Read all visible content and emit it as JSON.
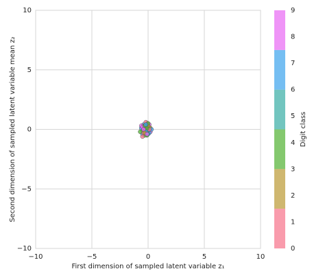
{
  "chart_data": {
    "type": "scatter",
    "xlabel": "First dimension of sampled latent variable z₁",
    "ylabel": "Second dimension of sampled latent variable mean z₂",
    "x": [
      -0.3,
      -0.1,
      0.1,
      -0.5,
      -0.2,
      0.0,
      -0.4,
      -0.6,
      0.2,
      -0.1,
      -0.3,
      0.1,
      -0.2,
      -0.5,
      0.0,
      -0.7,
      -0.1,
      0.2,
      -0.4,
      -0.2,
      0.0,
      -0.3,
      0.1,
      -0.6,
      -0.2,
      -0.4,
      0.0,
      -0.1,
      0.3,
      -0.5,
      -0.3,
      -0.2,
      0.1,
      -0.1,
      -0.4,
      -0.3,
      0.0,
      -0.2,
      -0.5,
      -0.1
    ],
    "y": [
      0.1,
      0.3,
      0.2,
      -0.1,
      -0.3,
      0.0,
      0.4,
      0.1,
      -0.2,
      0.5,
      -0.2,
      0.4,
      0.2,
      -0.4,
      -0.1,
      -0.2,
      -0.5,
      0.1,
      0.3,
      0.0,
      0.3,
      -0.5,
      -0.3,
      0.3,
      0.6,
      -0.3,
      0.5,
      -0.2,
      0.0,
      0.2,
      0.3,
      -0.1,
      0.0,
      0.1,
      0.0,
      -0.3,
      -0.4,
      0.4,
      -0.6,
      -0.4
    ],
    "classes": [
      0,
      1,
      2,
      3,
      4,
      5,
      6,
      7,
      8,
      9,
      9,
      8,
      7,
      6,
      5,
      4,
      3,
      2,
      1,
      0,
      2,
      4,
      6,
      8,
      0,
      1,
      3,
      5,
      7,
      9,
      4,
      6,
      1,
      3,
      8,
      2,
      5,
      7,
      0,
      9
    ],
    "xlim": [
      -10,
      10
    ],
    "ylim": [
      -10,
      10
    ],
    "xticks": [
      {
        "value": -10,
        "label": "−10"
      },
      {
        "value": -5,
        "label": "−5"
      },
      0,
      5,
      10
    ],
    "yticks": [
      {
        "value": -10,
        "label": "−10"
      },
      {
        "value": -5,
        "label": "−5"
      },
      0,
      5,
      10
    ],
    "grid": true,
    "colorbar": {
      "label": "Digit class",
      "lim": [
        0,
        9
      ],
      "ticks": [
        0,
        1,
        2,
        3,
        4,
        5,
        6,
        7,
        8,
        9
      ],
      "colors": [
        "#f77189",
        "#bb9832",
        "#50b131",
        "#36ada4",
        "#3ba3ec",
        "#e866f4"
      ]
    }
  }
}
